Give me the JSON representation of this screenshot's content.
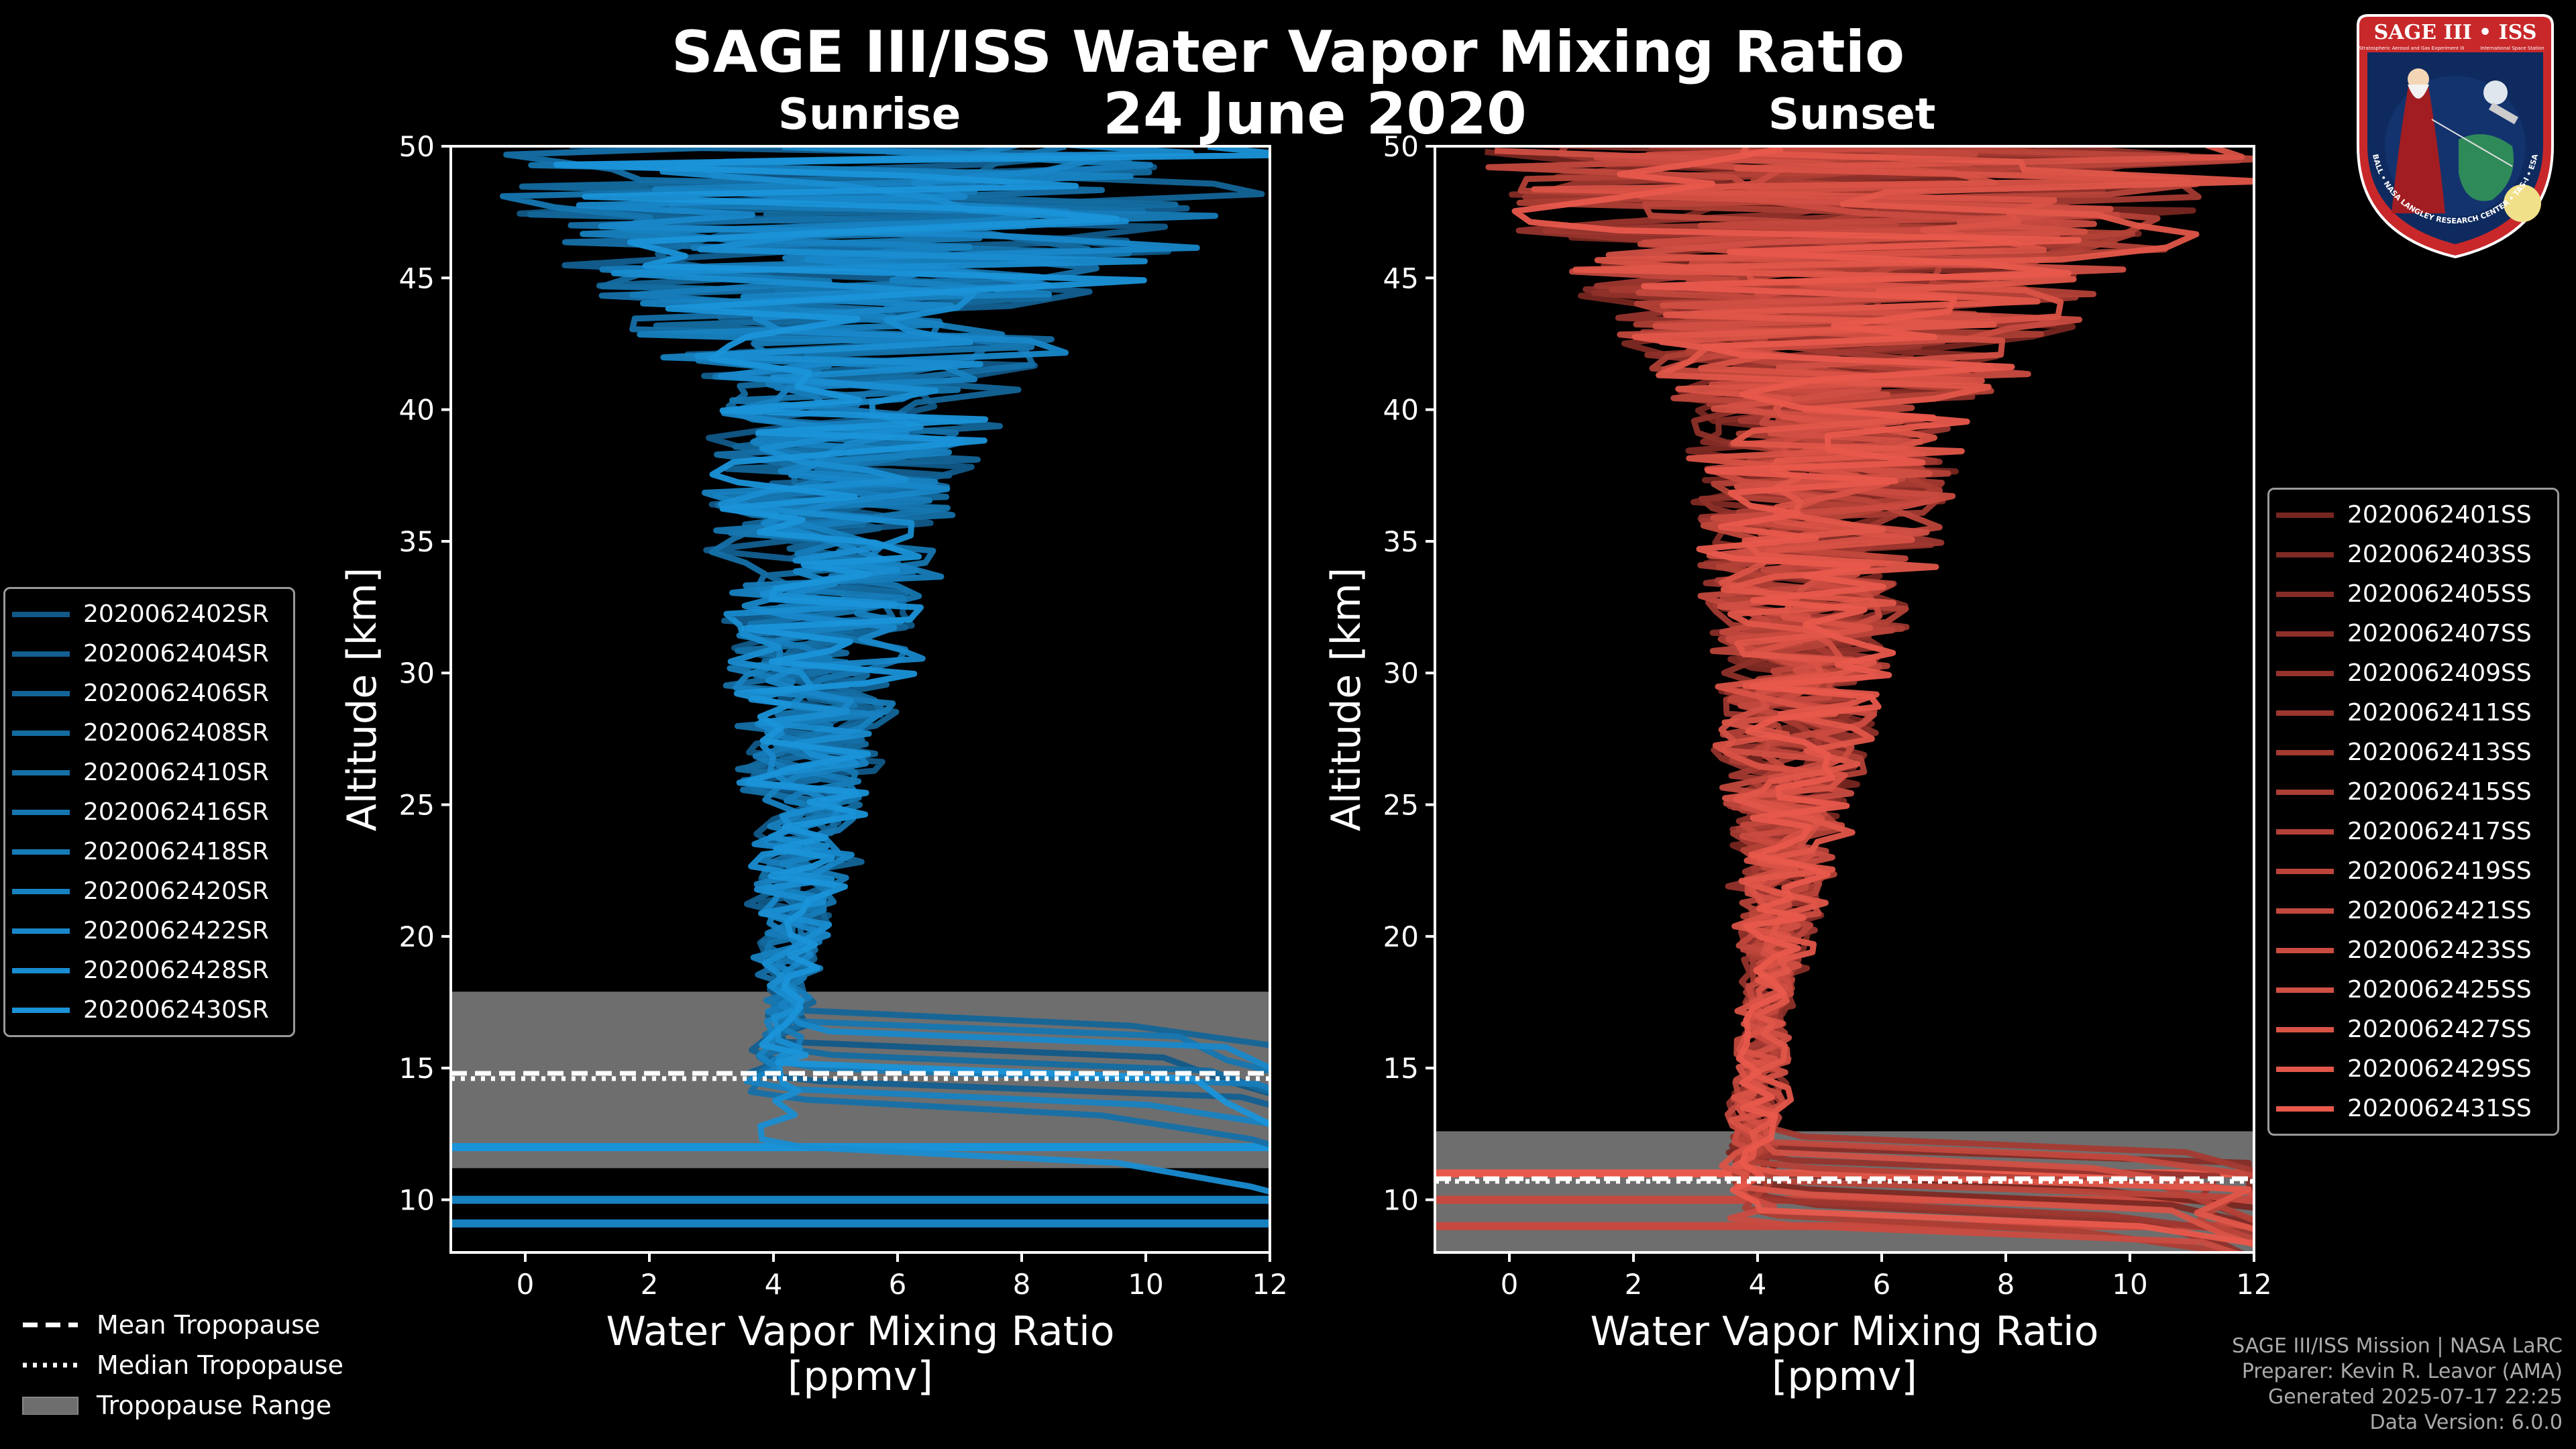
{
  "title": "SAGE III/ISS Water Vapor Mixing Ratio",
  "date": "24 June 2020",
  "chart_data": [
    {
      "type": "line",
      "title": "Sunrise",
      "xlabel": "Water Vapor Mixing Ratio",
      "xlabel_units": "[ppmv]",
      "ylabel": "Altitude [km]",
      "xlim": [
        -1.2,
        12
      ],
      "ylim": [
        8,
        50
      ],
      "xticks": [
        "0",
        "2",
        "4",
        "6",
        "8",
        "10",
        "12"
      ],
      "yticks": [
        "10",
        "15",
        "20",
        "25",
        "30",
        "35",
        "40",
        "45",
        "50"
      ],
      "color_dark": "#0c3a5c",
      "color_light": "#1a93d9",
      "tropopause": {
        "range": [
          11.2,
          17.9
        ],
        "mean": 14.8,
        "median": 14.6
      },
      "series": [
        {
          "name": "2020062402SR",
          "trop_alt": 16.0,
          "scale": 1.0
        },
        {
          "name": "2020062404SR",
          "trop_alt": 14.5,
          "scale": 0.95
        },
        {
          "name": "2020062406SR",
          "trop_alt": 17.2,
          "scale": 1.05
        },
        {
          "name": "2020062408SR",
          "trop_alt": 15.5,
          "scale": 1.0
        },
        {
          "name": "2020062410SR",
          "trop_alt": 13.8,
          "scale": 0.98
        },
        {
          "name": "2020062416SR",
          "trop_alt": 16.8,
          "scale": 1.02
        },
        {
          "name": "2020062418SR",
          "trop_alt": 15.0,
          "scale": 1.0
        },
        {
          "name": "2020062420SR",
          "trop_alt": 14.2,
          "scale": 0.97
        },
        {
          "name": "2020062422SR",
          "trop_alt": 16.4,
          "scale": 1.03
        },
        {
          "name": "2020062428SR",
          "trop_alt": 12.0,
          "scale": 1.0
        },
        {
          "name": "2020062430SR",
          "trop_alt": 15.2,
          "scale": 1.01
        }
      ],
      "hlines": [
        12.0,
        10.0,
        9.1
      ]
    },
    {
      "type": "line",
      "title": "Sunset",
      "xlabel": "Water Vapor Mixing Ratio",
      "xlabel_units": "[ppmv]",
      "ylabel": "Altitude [km]",
      "xlim": [
        -1.2,
        12
      ],
      "ylim": [
        8,
        50
      ],
      "xticks": [
        "0",
        "2",
        "4",
        "6",
        "8",
        "10",
        "12"
      ],
      "yticks": [
        "10",
        "15",
        "20",
        "25",
        "30",
        "35",
        "40",
        "45",
        "50"
      ],
      "color_dark": "#3a0a08",
      "color_light": "#e8594c",
      "tropopause": {
        "range": [
          8.0,
          12.6
        ],
        "mean": 10.8,
        "median": 10.7
      },
      "series": [
        {
          "name": "2020062401SS",
          "trop_alt": 11.0,
          "scale": 1.0
        },
        {
          "name": "2020062403SS",
          "trop_alt": 10.4,
          "scale": 0.98
        },
        {
          "name": "2020062405SS",
          "trop_alt": 12.0,
          "scale": 1.02
        },
        {
          "name": "2020062407SS",
          "trop_alt": 9.8,
          "scale": 1.0
        },
        {
          "name": "2020062409SS",
          "trop_alt": 11.5,
          "scale": 0.97
        },
        {
          "name": "2020062411SS",
          "trop_alt": 10.0,
          "scale": 1.03
        },
        {
          "name": "2020062413SS",
          "trop_alt": 12.4,
          "scale": 1.0
        },
        {
          "name": "2020062415SS",
          "trop_alt": 9.4,
          "scale": 0.99
        },
        {
          "name": "2020062417SS",
          "trop_alt": 11.2,
          "scale": 1.01
        },
        {
          "name": "2020062419SS",
          "trop_alt": 10.7,
          "scale": 1.0
        },
        {
          "name": "2020062421SS",
          "trop_alt": 12.2,
          "scale": 0.98
        },
        {
          "name": "2020062423SS",
          "trop_alt": 9.0,
          "scale": 1.02
        },
        {
          "name": "2020062425SS",
          "trop_alt": 11.8,
          "scale": 1.0
        },
        {
          "name": "2020062427SS",
          "trop_alt": 10.2,
          "scale": 0.97
        },
        {
          "name": "2020062429SS",
          "trop_alt": 11.0,
          "scale": 1.03
        },
        {
          "name": "2020062431SS",
          "trop_alt": 9.6,
          "scale": 1.0
        }
      ],
      "hlines": [
        11.0,
        10.0,
        9.0
      ]
    }
  ],
  "bottom_legend": {
    "mean": "Mean Tropopause",
    "median": "Median Tropopause",
    "range": "Tropopause Range"
  },
  "footer": {
    "line1": "SAGE III/ISS Mission | NASA LaRC",
    "line2": "Preparer: Kevin R. Leavor (AMA)",
    "line3": "Generated 2025-07-17 22:25",
    "line4": "Data Version: 6.0.0"
  },
  "logo": {
    "top_text": "SAGE III • ISS",
    "sub_left": "Stratospheric Aerosol and Gas Experiment III",
    "sub_right": "International Space Station",
    "ring_text": "BALL • NASA LANGLEY RESEARCH CENTER • TAS-I • ESA"
  }
}
